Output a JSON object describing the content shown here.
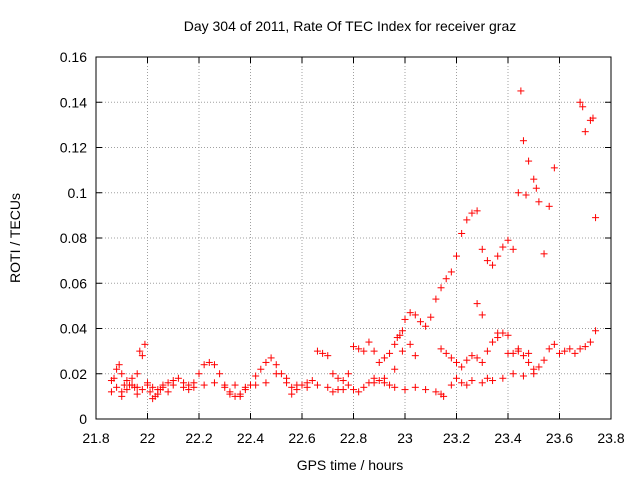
{
  "chart_data": {
    "type": "scatter",
    "title": "Day 304 of 2011, Rate Of TEC Index for receiver graz",
    "xlabel": "GPS time / hours",
    "ylabel": "ROTI / TECUs",
    "xlim": [
      21.8,
      23.8
    ],
    "ylim": [
      0,
      0.16
    ],
    "x_ticks": [
      "21.8",
      "22",
      "22.2",
      "22.4",
      "22.6",
      "22.8",
      "23",
      "23.2",
      "23.4",
      "23.6",
      "23.8"
    ],
    "y_ticks": [
      "0",
      "0.02",
      "0.04",
      "0.06",
      "0.08",
      "0.1",
      "0.12",
      "0.14",
      "0.16"
    ],
    "grid": true,
    "marker": "plus",
    "point_color": "#ff0000",
    "series": [
      {
        "values": [
          [
            21.86,
            0.012
          ],
          [
            21.87,
            0.018
          ],
          [
            21.88,
            0.022
          ],
          [
            21.89,
            0.024
          ],
          [
            21.9,
            0.02
          ],
          [
            21.91,
            0.015
          ],
          [
            21.92,
            0.013
          ],
          [
            21.93,
            0.015
          ],
          [
            21.94,
            0.018
          ],
          [
            21.95,
            0.014
          ],
          [
            21.96,
            0.02
          ],
          [
            21.97,
            0.03
          ],
          [
            21.98,
            0.028
          ],
          [
            21.99,
            0.033
          ],
          [
            22.0,
            0.016
          ],
          [
            22.01,
            0.012
          ],
          [
            22.02,
            0.009
          ],
          [
            22.03,
            0.01
          ],
          [
            22.04,
            0.011
          ],
          [
            22.05,
            0.013
          ],
          [
            22.06,
            0.015
          ],
          [
            22.08,
            0.016
          ],
          [
            22.1,
            0.017
          ],
          [
            22.12,
            0.018
          ],
          [
            22.14,
            0.016
          ],
          [
            22.16,
            0.015
          ],
          [
            22.18,
            0.016
          ],
          [
            22.2,
            0.02
          ],
          [
            22.22,
            0.024
          ],
          [
            22.24,
            0.025
          ],
          [
            22.26,
            0.024
          ],
          [
            22.28,
            0.02
          ],
          [
            22.3,
            0.015
          ],
          [
            22.32,
            0.012
          ],
          [
            22.34,
            0.01
          ],
          [
            22.36,
            0.011
          ],
          [
            22.38,
            0.013
          ],
          [
            22.4,
            0.015
          ],
          [
            22.42,
            0.019
          ],
          [
            22.44,
            0.022
          ],
          [
            22.46,
            0.025
          ],
          [
            22.48,
            0.027
          ],
          [
            22.5,
            0.024
          ],
          [
            22.52,
            0.02
          ],
          [
            22.54,
            0.016
          ],
          [
            22.56,
            0.014
          ],
          [
            22.58,
            0.013
          ],
          [
            22.6,
            0.015
          ],
          [
            22.62,
            0.016
          ],
          [
            22.64,
            0.017
          ],
          [
            22.66,
            0.03
          ],
          [
            22.68,
            0.029
          ],
          [
            22.7,
            0.028
          ],
          [
            22.72,
            0.02
          ],
          [
            22.74,
            0.018
          ],
          [
            22.76,
            0.017
          ],
          [
            22.78,
            0.02
          ],
          [
            22.8,
            0.032
          ],
          [
            22.82,
            0.031
          ],
          [
            22.84,
            0.03
          ],
          [
            22.86,
            0.034
          ],
          [
            22.88,
            0.03
          ],
          [
            22.9,
            0.025
          ],
          [
            22.92,
            0.027
          ],
          [
            22.94,
            0.029
          ],
          [
            22.96,
            0.033
          ],
          [
            22.97,
            0.036
          ],
          [
            22.98,
            0.037
          ],
          [
            22.99,
            0.039
          ],
          [
            23.0,
            0.044
          ],
          [
            23.02,
            0.047
          ],
          [
            23.04,
            0.046
          ],
          [
            23.06,
            0.043
          ],
          [
            23.08,
            0.041
          ],
          [
            23.1,
            0.045
          ],
          [
            23.12,
            0.053
          ],
          [
            23.14,
            0.058
          ],
          [
            23.16,
            0.062
          ],
          [
            23.18,
            0.065
          ],
          [
            23.2,
            0.072
          ],
          [
            23.22,
            0.082
          ],
          [
            23.24,
            0.088
          ],
          [
            23.26,
            0.091
          ],
          [
            23.28,
            0.092
          ],
          [
            23.3,
            0.075
          ],
          [
            23.32,
            0.07
          ],
          [
            23.34,
            0.068
          ],
          [
            23.36,
            0.072
          ],
          [
            23.38,
            0.076
          ],
          [
            23.4,
            0.079
          ],
          [
            23.42,
            0.075
          ],
          [
            23.44,
            0.1
          ],
          [
            23.45,
            0.145
          ],
          [
            23.46,
            0.123
          ],
          [
            23.47,
            0.099
          ],
          [
            23.48,
            0.114
          ],
          [
            23.5,
            0.106
          ],
          [
            23.51,
            0.102
          ],
          [
            23.52,
            0.096
          ],
          [
            23.54,
            0.073
          ],
          [
            23.56,
            0.094
          ],
          [
            23.58,
            0.111
          ],
          [
            23.68,
            0.14
          ],
          [
            23.69,
            0.138
          ],
          [
            23.7,
            0.127
          ],
          [
            23.72,
            0.132
          ],
          [
            23.73,
            0.133
          ],
          [
            23.74,
            0.089
          ],
          [
            21.86,
            0.017
          ],
          [
            21.88,
            0.014
          ],
          [
            21.9,
            0.012
          ],
          [
            21.92,
            0.017
          ],
          [
            21.94,
            0.015
          ],
          [
            21.96,
            0.014
          ],
          [
            21.98,
            0.013
          ],
          [
            22.0,
            0.015
          ],
          [
            22.02,
            0.014
          ],
          [
            22.04,
            0.013
          ],
          [
            22.06,
            0.014
          ],
          [
            22.1,
            0.015
          ],
          [
            22.14,
            0.014
          ],
          [
            22.18,
            0.014
          ],
          [
            22.22,
            0.015
          ],
          [
            22.26,
            0.016
          ],
          [
            22.3,
            0.014
          ],
          [
            22.34,
            0.015
          ],
          [
            22.38,
            0.014
          ],
          [
            22.42,
            0.015
          ],
          [
            22.46,
            0.016
          ],
          [
            22.5,
            0.02
          ],
          [
            22.54,
            0.018
          ],
          [
            22.58,
            0.015
          ],
          [
            22.62,
            0.014
          ],
          [
            22.66,
            0.015
          ],
          [
            22.7,
            0.014
          ],
          [
            22.74,
            0.013
          ],
          [
            22.78,
            0.015
          ],
          [
            22.8,
            0.013
          ],
          [
            22.82,
            0.012
          ],
          [
            22.84,
            0.014
          ],
          [
            22.86,
            0.016
          ],
          [
            22.88,
            0.018
          ],
          [
            22.9,
            0.017
          ],
          [
            22.92,
            0.016
          ],
          [
            22.94,
            0.015
          ],
          [
            22.96,
            0.014
          ],
          [
            23.0,
            0.013
          ],
          [
            23.04,
            0.014
          ],
          [
            23.08,
            0.013
          ],
          [
            23.12,
            0.012
          ],
          [
            23.14,
            0.011
          ],
          [
            23.15,
            0.01
          ],
          [
            23.18,
            0.015
          ],
          [
            23.2,
            0.018
          ],
          [
            23.22,
            0.016
          ],
          [
            23.24,
            0.015
          ],
          [
            23.26,
            0.017
          ],
          [
            23.3,
            0.016
          ],
          [
            23.32,
            0.018
          ],
          [
            23.34,
            0.017
          ],
          [
            23.38,
            0.018
          ],
          [
            23.42,
            0.02
          ],
          [
            23.46,
            0.019
          ],
          [
            23.5,
            0.022
          ],
          [
            23.52,
            0.023
          ],
          [
            23.54,
            0.026
          ],
          [
            23.56,
            0.031
          ],
          [
            23.58,
            0.033
          ],
          [
            23.6,
            0.029
          ],
          [
            23.62,
            0.03
          ],
          [
            23.64,
            0.031
          ],
          [
            23.66,
            0.029
          ],
          [
            23.68,
            0.031
          ],
          [
            23.7,
            0.032
          ],
          [
            23.72,
            0.034
          ],
          [
            23.74,
            0.039
          ],
          [
            23.14,
            0.031
          ],
          [
            23.16,
            0.029
          ],
          [
            23.18,
            0.027
          ],
          [
            23.2,
            0.025
          ],
          [
            23.22,
            0.023
          ],
          [
            23.24,
            0.026
          ],
          [
            23.26,
            0.028
          ],
          [
            23.28,
            0.027
          ],
          [
            23.3,
            0.025
          ],
          [
            23.32,
            0.03
          ],
          [
            23.34,
            0.034
          ],
          [
            23.36,
            0.036
          ],
          [
            23.38,
            0.038
          ],
          [
            23.4,
            0.029
          ],
          [
            23.42,
            0.029
          ],
          [
            23.44,
            0.03
          ],
          [
            23.46,
            0.028
          ],
          [
            23.48,
            0.025
          ],
          [
            23.5,
            0.02
          ],
          [
            23.28,
            0.051
          ],
          [
            23.3,
            0.046
          ],
          [
            23.36,
            0.038
          ],
          [
            23.4,
            0.037
          ],
          [
            23.44,
            0.031
          ],
          [
            23.48,
            0.029
          ],
          [
            23.02,
            0.033
          ],
          [
            23.04,
            0.028
          ],
          [
            22.99,
            0.03
          ],
          [
            22.96,
            0.022
          ],
          [
            22.92,
            0.018
          ],
          [
            22.88,
            0.016
          ],
          [
            22.76,
            0.013
          ],
          [
            22.72,
            0.012
          ],
          [
            22.56,
            0.011
          ],
          [
            22.36,
            0.01
          ],
          [
            22.32,
            0.011
          ],
          [
            22.16,
            0.013
          ],
          [
            22.08,
            0.012
          ],
          [
            21.96,
            0.011
          ],
          [
            21.9,
            0.01
          ]
        ]
      }
    ]
  }
}
